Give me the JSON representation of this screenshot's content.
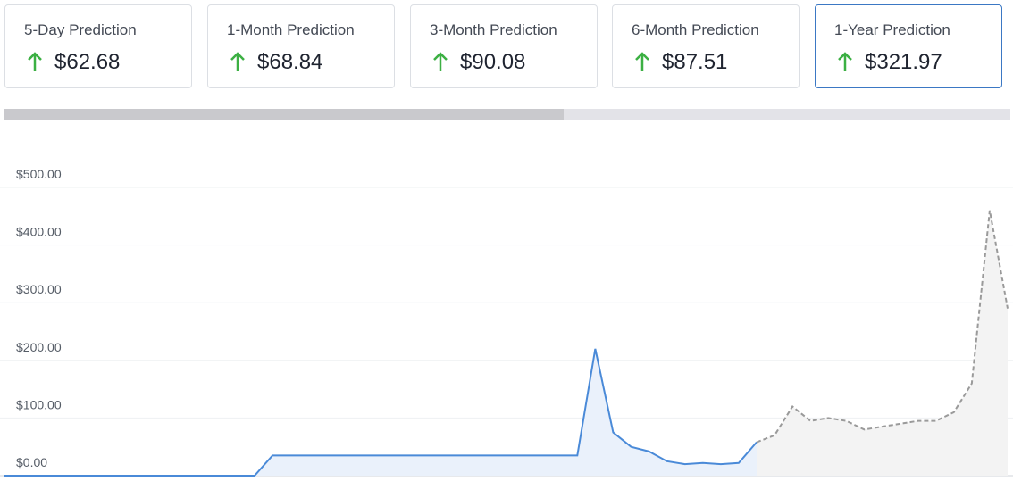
{
  "cards": [
    {
      "label": "5-Day Prediction",
      "value": "$62.68"
    },
    {
      "label": "1-Month Prediction",
      "value": "$68.84"
    },
    {
      "label": "3-Month Prediction",
      "value": "$90.08"
    },
    {
      "label": "6-Month Prediction",
      "value": "$87.51"
    },
    {
      "label": "1-Year Prediction",
      "value": "$321.97"
    }
  ],
  "chart_data": {
    "type": "line",
    "ylim": [
      0,
      500
    ],
    "yticks": [
      {
        "value": 0,
        "label": "$0.00"
      },
      {
        "value": 100,
        "label": "$100.00"
      },
      {
        "value": 200,
        "label": "$200.00"
      },
      {
        "value": 300,
        "label": "$300.00"
      },
      {
        "value": 400,
        "label": "$400.00"
      },
      {
        "value": 500,
        "label": "$500.00"
      }
    ],
    "grid": true,
    "series": [
      {
        "color": "#4a8ad8",
        "dash": false,
        "fill": "#eaf1fb",
        "values": [
          0,
          0,
          0,
          0,
          0,
          0,
          0,
          0,
          0,
          0,
          0,
          0,
          0,
          0,
          0,
          35,
          35,
          35,
          35,
          35,
          35,
          35,
          35,
          35,
          35,
          35,
          35,
          35,
          35,
          35,
          35,
          35,
          35,
          220,
          75,
          50,
          42,
          25,
          20,
          22,
          20,
          22,
          58,
          null,
          null,
          null,
          null,
          null,
          null,
          null,
          null,
          null,
          null,
          null,
          null,
          null,
          null
        ]
      },
      {
        "color": "#9a9a9a",
        "dash": true,
        "fill": "#f3f3f3",
        "values": [
          null,
          null,
          null,
          null,
          null,
          null,
          null,
          null,
          null,
          null,
          null,
          null,
          null,
          null,
          null,
          null,
          null,
          null,
          null,
          null,
          null,
          null,
          null,
          null,
          null,
          null,
          null,
          null,
          null,
          null,
          null,
          null,
          null,
          null,
          null,
          null,
          null,
          null,
          null,
          null,
          null,
          null,
          58,
          70,
          120,
          95,
          100,
          95,
          80,
          85,
          90,
          95,
          95,
          110,
          160,
          460,
          290
        ]
      }
    ]
  }
}
